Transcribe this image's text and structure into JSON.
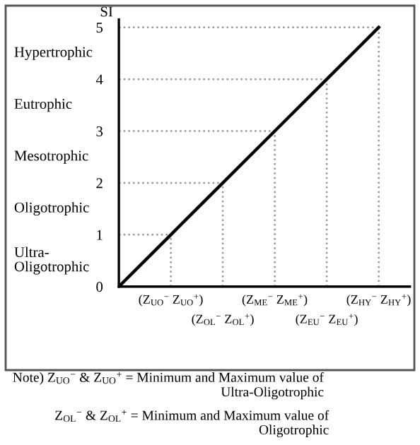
{
  "chart_data": {
    "type": "line",
    "ylabel": "SI",
    "categories": [
      null,
      "(Z$_{UO}$$^{−}$ Z$_{UO}$$^{+}$)",
      "(Z$_{OL}$$^{−}$ Z$_{OL}$$^{+}$)",
      "(Z$_{ME}$$^{−}$ Z$_{ME}$$^{+}$)",
      "(Z$_{EU}$$^{−}$ Z$_{EU}$$^{+}$)",
      "(Z$_{HY}$$^{−}$ Z$_{HY}$$^{+}$)"
    ],
    "series": [
      {
        "color": "#000000",
        "values": [
          0,
          1,
          2,
          3,
          4,
          5
        ]
      }
    ],
    "ylim": [
      0,
      5.15
    ],
    "yticks": [
      0,
      1,
      2,
      3,
      4,
      5
    ],
    "grid": false,
    "legend": false,
    "marker": "none",
    "line_style": "solid",
    "ref_lines": [
      {
        "axis": "x",
        "value": "(Z$_{UO}$$^{−}$ Z$_{UO}$$^{+}$)",
        "line_style": "dotted",
        "color": "#999999"
      },
      {
        "axis": "x",
        "value": "(Z$_{OL}$$^{−}$ Z$_{OL}$$^{+}$)",
        "line_style": "dotted",
        "color": "#999999"
      },
      {
        "axis": "x",
        "value": "(Z$_{ME}$$^{−}$ Z$_{ME}$$^{+}$)",
        "line_style": "dotted",
        "color": "#999999"
      },
      {
        "axis": "x",
        "value": "(Z$_{EU}$$^{−}$ Z$_{EU}$$^{+}$)",
        "line_style": "dotted",
        "color": "#999999"
      },
      {
        "axis": "x",
        "value": "(Z$_{HY}$$^{−}$ Z$_{HY}$$^{+}$)",
        "line_style": "dotted",
        "color": "#999999"
      },
      {
        "axis": "y",
        "value": 1,
        "line_style": "dotted",
        "color": "#999999"
      },
      {
        "axis": "y",
        "value": 2,
        "line_style": "dotted",
        "color": "#999999"
      },
      {
        "axis": "y",
        "value": 3,
        "line_style": "dotted",
        "color": "#999999"
      },
      {
        "axis": "y",
        "value": 4,
        "line_style": "dotted",
        "color": "#999999"
      },
      {
        "axis": "y",
        "value": 5,
        "line_style": "dotted",
        "color": "#999999"
      }
    ],
    "annotations": [
      "Hypertrophic",
      "Eutrophic",
      "Mesotrophic",
      "Oligotrophic",
      "Ultra-\nOligotrophic",
      "Note) Z$_{UO}$$^{−}$ & Z$_{UO}$$^{+}$ = Minimum and Maximum value of\nUltra-Oligotrophic",
      "Z$_{OL}$$^{−}$ & Z$_{OL}$$^{+}$ = Minimum and Maximum value of\nOligotrophic"
    ]
  }
}
